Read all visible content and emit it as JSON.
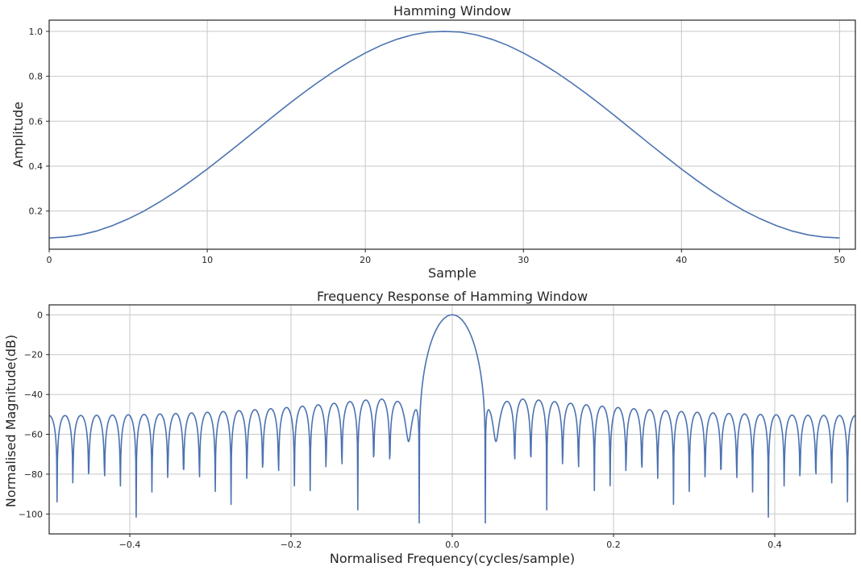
{
  "chart_data": [
    {
      "type": "line",
      "title": "Hamming Window",
      "xlabel": "Sample",
      "ylabel": "Amplitude",
      "xlim": [
        0,
        51
      ],
      "ylim": [
        0.03,
        1.05
      ],
      "xticks": [
        0,
        10,
        20,
        30,
        40,
        50
      ],
      "xtick_labels": [
        "0",
        "10",
        "20",
        "30",
        "40",
        "50"
      ],
      "yticks": [
        0.2,
        0.4,
        0.6,
        0.8,
        1.0
      ],
      "ytick_labels": [
        "0.2",
        "0.4",
        "0.6",
        "0.8",
        "1.0"
      ],
      "grid": true,
      "series": [
        {
          "color": "#4c72b0",
          "x": [
            0,
            1,
            2,
            3,
            4,
            5,
            6,
            7,
            8,
            9,
            10,
            11,
            12,
            13,
            14,
            15,
            16,
            17,
            18,
            19,
            20,
            21,
            22,
            23,
            24,
            25,
            26,
            27,
            28,
            29,
            30,
            31,
            32,
            33,
            34,
            35,
            36,
            37,
            38,
            39,
            40,
            41,
            42,
            43,
            44,
            45,
            46,
            47,
            48,
            49,
            50
          ],
          "values": [
            0.08,
            0.084,
            0.094,
            0.111,
            0.135,
            0.165,
            0.2,
            0.241,
            0.286,
            0.335,
            0.387,
            0.442,
            0.498,
            0.555,
            0.612,
            0.668,
            0.722,
            0.773,
            0.821,
            0.865,
            0.904,
            0.938,
            0.965,
            0.985,
            0.997,
            1.0,
            0.997,
            0.985,
            0.965,
            0.938,
            0.904,
            0.865,
            0.821,
            0.773,
            0.722,
            0.668,
            0.612,
            0.555,
            0.498,
            0.442,
            0.387,
            0.335,
            0.286,
            0.241,
            0.2,
            0.165,
            0.135,
            0.111,
            0.094,
            0.084,
            0.08
          ]
        }
      ]
    },
    {
      "type": "line",
      "title": "Frequency Response of Hamming Window",
      "xlabel": "Normalised Frequency(cycles/sample)",
      "ylabel": "Normalised Magnitude(dB)",
      "xlim": [
        -0.5,
        0.5
      ],
      "ylim": [
        -110,
        5
      ],
      "xticks": [
        -0.4,
        -0.2,
        0.0,
        0.2,
        0.4
      ],
      "xtick_labels": [
        "−0.4",
        "−0.2",
        "0.0",
        "0.2",
        "0.4"
      ],
      "yticks": [
        0,
        -20,
        -40,
        -60,
        -80,
        -100
      ],
      "ytick_labels": [
        "0",
        "−20",
        "−40",
        "−60",
        "−80",
        "−100"
      ],
      "grid": true,
      "series": [
        {
          "color": "#4c72b0",
          "window": "hamming",
          "window_length": 51,
          "fft_length": 2048,
          "floor_db": -120
        }
      ]
    }
  ]
}
